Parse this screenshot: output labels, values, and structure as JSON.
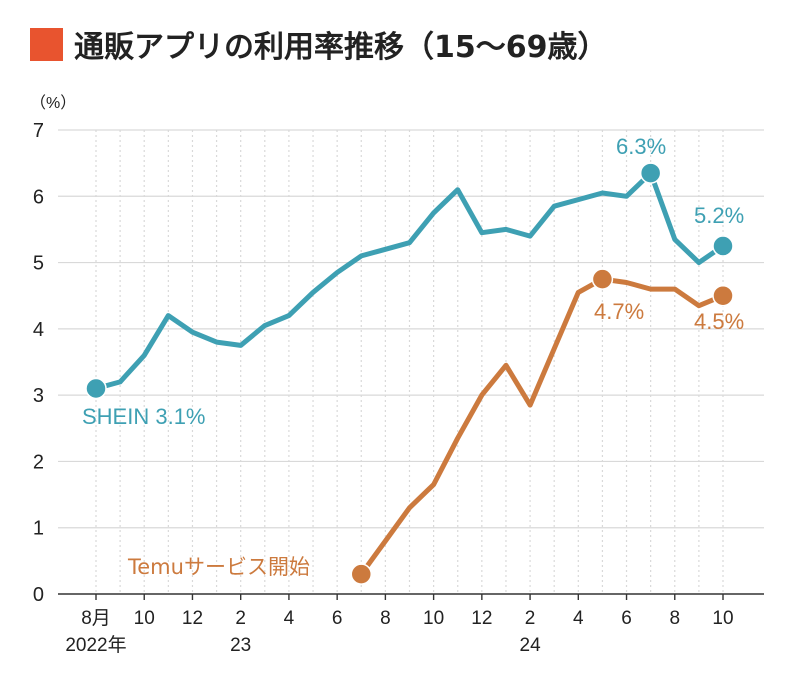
{
  "title": "通販アプリの利用率推移（15～69歳）",
  "colors": {
    "title_marker": "#e8542f",
    "shein": "#3ea0b3",
    "temu": "#cc7a3e",
    "grid": "#d9d9d9",
    "axis": "#333333"
  },
  "chart_data": {
    "type": "line",
    "unit_label": "（%）",
    "ylim": [
      0,
      7
    ],
    "y_ticks": [
      "0",
      "1",
      "2",
      "3",
      "4",
      "5",
      "6",
      "7"
    ],
    "x_index_range": [
      0,
      26
    ],
    "x_ticks": [
      {
        "idx": 0,
        "label": "8月",
        "sub": "2022年"
      },
      {
        "idx": 2,
        "label": "10"
      },
      {
        "idx": 4,
        "label": "12"
      },
      {
        "idx": 6,
        "label": "2",
        "sub": "23"
      },
      {
        "idx": 8,
        "label": "4"
      },
      {
        "idx": 10,
        "label": "6"
      },
      {
        "idx": 12,
        "label": "8"
      },
      {
        "idx": 14,
        "label": "10"
      },
      {
        "idx": 16,
        "label": "12"
      },
      {
        "idx": 18,
        "label": "2",
        "sub": "24"
      },
      {
        "idx": 20,
        "label": "4"
      },
      {
        "idx": 22,
        "label": "6"
      },
      {
        "idx": 24,
        "label": "8"
      },
      {
        "idx": 26,
        "label": "10"
      }
    ],
    "grid": true,
    "series": [
      {
        "name": "SHEIN",
        "color": "#3ea0b3",
        "x": [
          0,
          1,
          2,
          3,
          4,
          5,
          6,
          7,
          8,
          9,
          10,
          11,
          12,
          13,
          14,
          15,
          16,
          17,
          18,
          19,
          20,
          21,
          22,
          23,
          24,
          25,
          26
        ],
        "y": [
          3.1,
          3.2,
          3.6,
          4.2,
          3.95,
          3.8,
          3.75,
          4.05,
          4.2,
          4.55,
          4.85,
          5.1,
          5.2,
          5.3,
          5.75,
          6.1,
          5.45,
          5.5,
          5.4,
          5.85,
          5.95,
          6.05,
          6.0,
          6.35,
          5.35,
          5.0,
          5.25
        ],
        "markers": [
          0,
          23,
          26
        ]
      },
      {
        "name": "Temu",
        "color": "#cc7a3e",
        "x": [
          11,
          12,
          13,
          14,
          15,
          16,
          17,
          18,
          19,
          20,
          21,
          22,
          23,
          24,
          25,
          26
        ],
        "y": [
          0.3,
          0.8,
          1.3,
          1.65,
          2.35,
          3.0,
          3.45,
          2.85,
          3.7,
          4.55,
          4.75,
          4.7,
          4.6,
          4.6,
          4.35,
          4.5
        ],
        "markers": [
          11,
          21,
          26
        ]
      }
    ],
    "annotations": [
      {
        "text": "SHEIN 3.1%",
        "series": "SHEIN"
      },
      {
        "text": "6.3%",
        "series": "SHEIN"
      },
      {
        "text": "5.2%",
        "series": "SHEIN"
      },
      {
        "text": "Temuサービス開始",
        "series": "Temu"
      },
      {
        "text": "4.7%",
        "series": "Temu"
      },
      {
        "text": "4.5%",
        "series": "Temu"
      }
    ]
  }
}
